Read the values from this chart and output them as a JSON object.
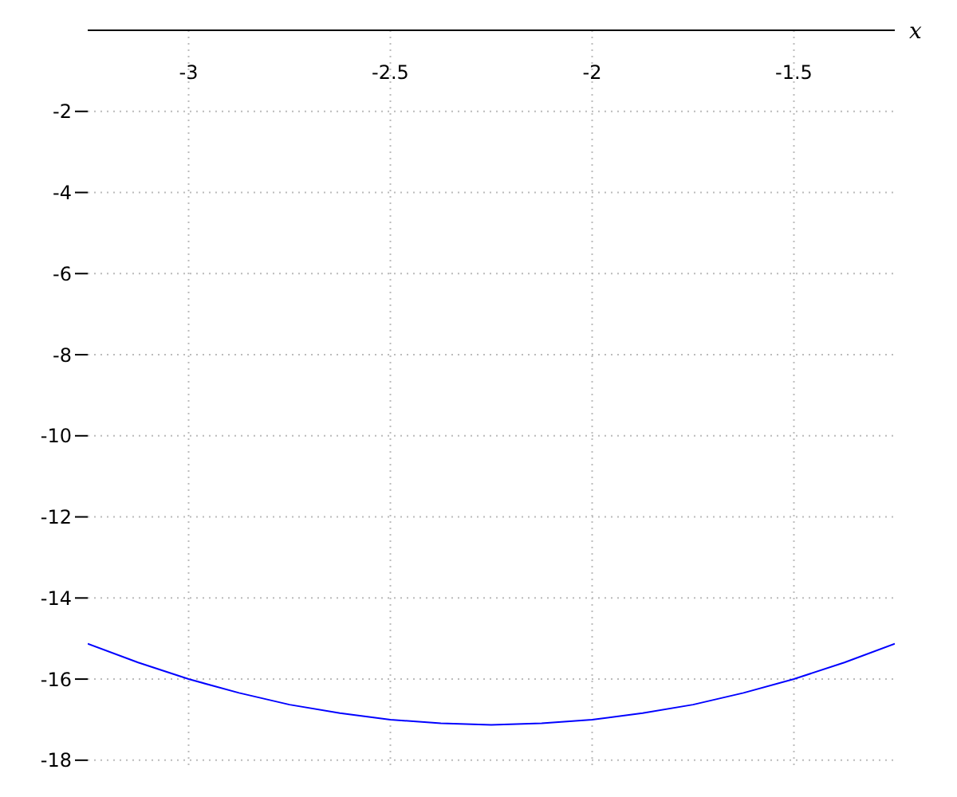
{
  "chart_data": {
    "type": "line",
    "xlabel": "x",
    "x": [
      -3.25,
      -3.125,
      -3,
      -2.875,
      -2.75,
      -2.625,
      -2.5,
      -2.375,
      -2.25,
      -2.125,
      -2,
      -1.875,
      -1.75,
      -1.625,
      -1.5,
      -1.375,
      -1.25
    ],
    "series": [
      {
        "color": "#0000ff",
        "values": [
          -15.13,
          -15.59,
          -16,
          -16.34,
          -16.63,
          -16.84,
          -17,
          -17.09,
          -17.13,
          -17.09,
          -17,
          -16.84,
          -16.63,
          -16.34,
          -16,
          -15.59,
          -15.13
        ]
      }
    ],
    "xlim": [
      -3.25,
      -1.25
    ],
    "xticks": [
      -3,
      -2.5,
      -2,
      -1.5
    ],
    "ylim": [
      -18.2,
      0
    ],
    "yticks": [
      -2,
      -4,
      -6,
      -8,
      -10,
      -12,
      -14,
      -16,
      -18
    ],
    "grid": true,
    "marker": "none",
    "line_style": "solid",
    "legend": false
  }
}
